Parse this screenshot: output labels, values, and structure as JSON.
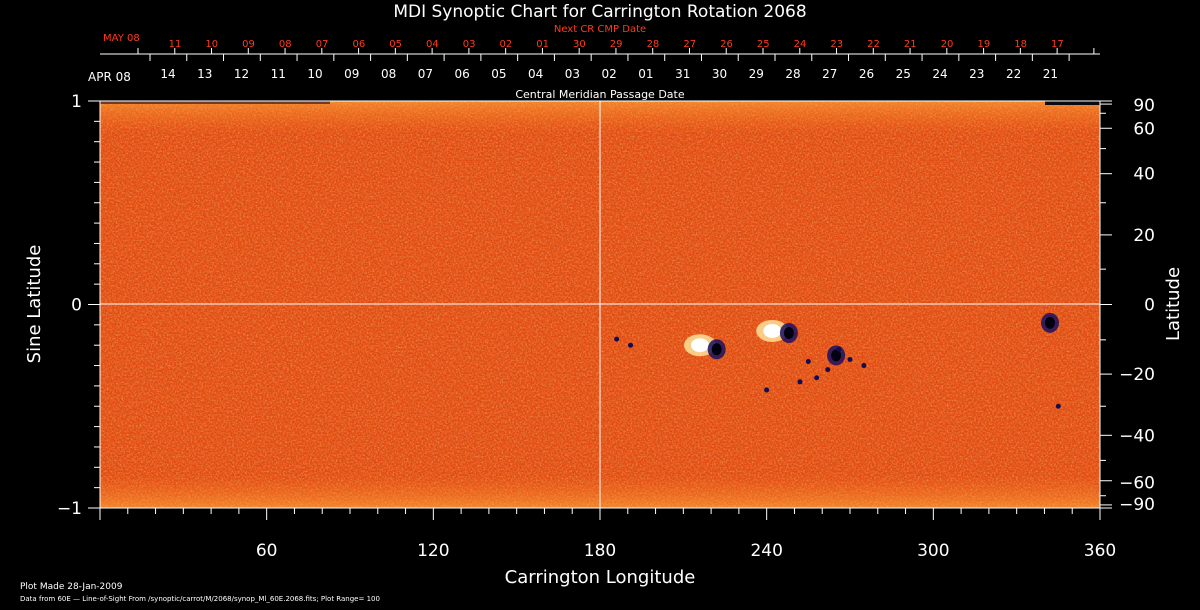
{
  "chart_data": {
    "type": "heatmap",
    "title": "MDI Synoptic Chart for Carrington Rotation 2068",
    "xlabel": "Carrington Longitude",
    "ylabel_left": "Sine Latitude",
    "ylabel_right": "Latitude",
    "xlim": [
      0,
      360
    ],
    "ylim": [
      -1,
      1
    ],
    "x_ticks": [
      "60",
      "120",
      "180",
      "240",
      "300",
      "360"
    ],
    "y_ticks_left": [
      "1",
      "0",
      "−1"
    ],
    "y_ticks_right": [
      "90",
      "60",
      "40",
      "20",
      "0",
      "−20",
      "−40",
      "−60",
      "−90"
    ],
    "top_axis_next": {
      "label": "Next CR CMP Date",
      "month_label": "MAY 08",
      "ticks": [
        "11",
        "10",
        "09",
        "08",
        "07",
        "06",
        "05",
        "04",
        "03",
        "02",
        "01",
        "30",
        "29",
        "28",
        "27",
        "26",
        "25",
        "24",
        "23",
        "22",
        "21",
        "20",
        "19",
        "18",
        "17"
      ]
    },
    "top_axis_cmp": {
      "label": "Central Meridian Passage Date",
      "month_label": "APR 08",
      "ticks": [
        "14",
        "13",
        "12",
        "11",
        "10",
        "09",
        "08",
        "07",
        "06",
        "05",
        "04",
        "03",
        "02",
        "01",
        "31",
        "30",
        "29",
        "28",
        "27",
        "26",
        "25",
        "24",
        "23",
        "22",
        "21"
      ]
    },
    "grid": false,
    "reference_lines": [
      "longitude 180",
      "sine latitude 0"
    ],
    "colorscale": [
      "#0a0a50",
      "#b01808",
      "#e84010",
      "#ff7818",
      "#ffc850",
      "#ffffff"
    ],
    "plot_range": "100",
    "active_regions": [
      {
        "lon": 216,
        "sinlat": -0.2,
        "polarity": "positive"
      },
      {
        "lon": 222,
        "sinlat": -0.22,
        "polarity": "negative"
      },
      {
        "lon": 242,
        "sinlat": -0.13,
        "polarity": "positive"
      },
      {
        "lon": 248,
        "sinlat": -0.14,
        "polarity": "negative"
      },
      {
        "lon": 265,
        "sinlat": -0.25,
        "polarity": "negative"
      },
      {
        "lon": 342,
        "sinlat": -0.09,
        "polarity": "negative"
      }
    ]
  },
  "footer": {
    "plot_made": "Plot Made 28-Jan-2009",
    "data_from": "Data from 60E — Line-of-Sight From /synoptic/carrot/M/2068/synop_Ml_60E.2068.fits; Plot Range=  100"
  }
}
